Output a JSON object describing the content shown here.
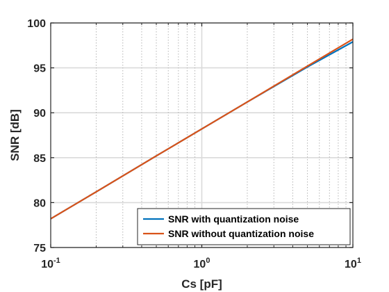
{
  "chart_data": {
    "type": "line",
    "xscale": "log",
    "xlim": [
      0.1,
      10
    ],
    "ylim": [
      75,
      100
    ],
    "grid": {
      "x_minor": true,
      "y_major": true
    },
    "xlabel": "Cs [pF]",
    "ylabel": "SNR [dB]",
    "x_ticks": [
      {
        "value": 0.1,
        "base": "10",
        "exp": "-1"
      },
      {
        "value": 1,
        "base": "10",
        "exp": "0"
      },
      {
        "value": 10,
        "base": "10",
        "exp": "1"
      }
    ],
    "y_ticks": [
      75,
      80,
      85,
      90,
      95,
      100
    ],
    "legend_position": "bottom-right",
    "series": [
      {
        "name": "SNR with quantization noise",
        "color": "#0072BD",
        "x": [
          0.1,
          0.2,
          0.5,
          1,
          2,
          5,
          10
        ],
        "y": [
          78.2,
          81.2,
          85.2,
          88.2,
          91.2,
          95.1,
          97.9
        ]
      },
      {
        "name": "SNR without quantization noise",
        "color": "#D95319",
        "x": [
          0.1,
          0.2,
          0.5,
          1,
          2,
          5,
          10
        ],
        "y": [
          78.2,
          81.2,
          85.2,
          88.2,
          91.2,
          95.2,
          98.2
        ]
      }
    ]
  }
}
